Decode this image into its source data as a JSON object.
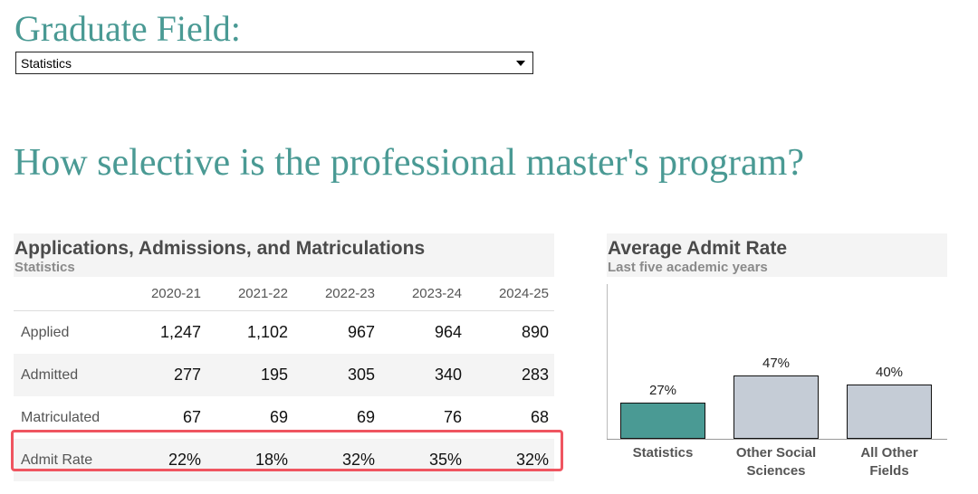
{
  "header": {
    "field_title": "Graduate Field:",
    "field_select_value": "Statistics",
    "question": "How selective is the professional master's program?"
  },
  "table": {
    "title": "Applications, Admissions, and Matriculations",
    "subtitle": "Statistics",
    "columns": [
      "2020-21",
      "2021-22",
      "2022-23",
      "2023-24",
      "2024-25"
    ],
    "rows": [
      {
        "label": "Applied",
        "values": [
          "1,247",
          "1,102",
          "967",
          "964",
          "890"
        ]
      },
      {
        "label": "Admitted",
        "values": [
          "277",
          "195",
          "305",
          "340",
          "283"
        ]
      },
      {
        "label": "Matriculated",
        "values": [
          "67",
          "69",
          "69",
          "76",
          "68"
        ]
      },
      {
        "label": "Admit Rate",
        "values": [
          "22%",
          "18%",
          "32%",
          "35%",
          "32%"
        ]
      }
    ]
  },
  "chart": {
    "title": "Average Admit Rate",
    "subtitle": "Last five academic years"
  },
  "chart_data": {
    "type": "bar",
    "title": "Average Admit Rate",
    "subtitle": "Last five academic years",
    "categories": [
      "Statistics",
      "Other Social Sciences",
      "All Other Fields"
    ],
    "category_lines": [
      [
        "Statistics"
      ],
      [
        "Other Social",
        "Sciences"
      ],
      [
        "All Other",
        "Fields"
      ]
    ],
    "values": [
      27,
      47,
      40
    ],
    "value_labels": [
      "27%",
      "47%",
      "40%"
    ],
    "colors": [
      "#4a9a94",
      "#c5ccd6",
      "#c5ccd6"
    ],
    "ylim": [
      0,
      100
    ],
    "grid": false,
    "legend": "none"
  }
}
